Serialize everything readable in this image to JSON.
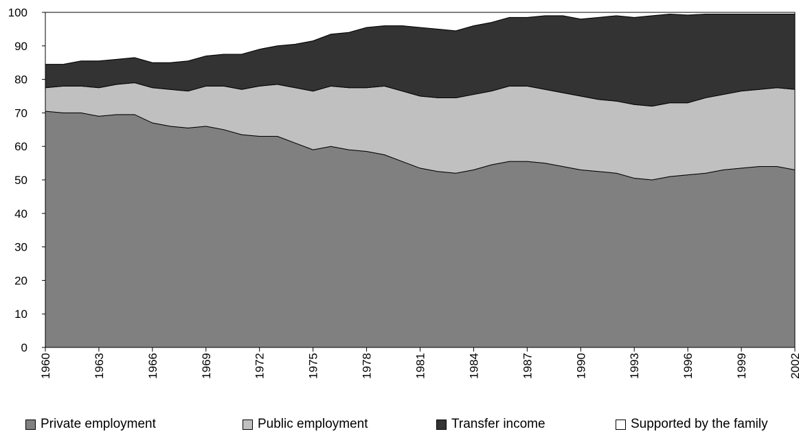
{
  "chart_data": {
    "type": "stacked-area",
    "x": [
      1960,
      1961,
      1962,
      1963,
      1964,
      1965,
      1966,
      1967,
      1968,
      1969,
      1970,
      1971,
      1972,
      1973,
      1974,
      1975,
      1976,
      1977,
      1978,
      1979,
      1980,
      1981,
      1982,
      1983,
      1984,
      1985,
      1986,
      1987,
      1988,
      1989,
      1990,
      1991,
      1992,
      1993,
      1994,
      1995,
      1996,
      1997,
      1998,
      1999,
      2000,
      2001,
      2002
    ],
    "xlim": [
      1960,
      2002
    ],
    "xticks": [
      1960,
      1963,
      1966,
      1969,
      1972,
      1975,
      1978,
      1981,
      1984,
      1987,
      1990,
      1993,
      1996,
      1999,
      2002
    ],
    "ylim": [
      0,
      100
    ],
    "yticks": [
      0,
      10,
      20,
      30,
      40,
      50,
      60,
      70,
      80,
      90,
      100
    ],
    "series": [
      {
        "name": "Private employment",
        "color": "#808080",
        "values": [
          70.5,
          70,
          70,
          69,
          69.5,
          69.5,
          67,
          66,
          65.5,
          66,
          65,
          63.5,
          63,
          63,
          61,
          59,
          60,
          59,
          58.5,
          57.5,
          55.5,
          53.5,
          52.5,
          52,
          53,
          54.5,
          55.5,
          55.5,
          55,
          54,
          53,
          52.5,
          52,
          50.5,
          50,
          51,
          51.5,
          52,
          53,
          53.5,
          54,
          54,
          53
        ]
      },
      {
        "name": "Public employment",
        "color": "#c0c0c0",
        "values": [
          7,
          8,
          8,
          8.5,
          9,
          9.5,
          10.5,
          11,
          11,
          12,
          13,
          13.5,
          15,
          15.5,
          16.5,
          17.5,
          18,
          18.5,
          19,
          20.5,
          21,
          21.5,
          22,
          22.5,
          22.5,
          22,
          22.5,
          22.5,
          22,
          22,
          22,
          21.5,
          21.5,
          22,
          22,
          22,
          21.5,
          22.5,
          22.5,
          23,
          23,
          23.5,
          24
        ]
      },
      {
        "name": "Transfer income",
        "color": "#333333",
        "values": [
          7,
          6.5,
          7.5,
          8,
          7.5,
          7.5,
          7.5,
          8,
          9,
          9,
          9.5,
          10.5,
          11,
          11.5,
          13,
          15,
          15.5,
          16.5,
          18,
          18,
          19.5,
          20.5,
          20.5,
          20,
          20.5,
          20.5,
          20.5,
          20.5,
          22,
          23,
          23,
          24.5,
          25.5,
          26,
          27,
          26.5,
          26.2,
          25,
          24,
          23,
          22.5,
          22,
          22.5
        ]
      },
      {
        "name": "Supported by the family",
        "color": "#ffffff",
        "values": [
          15.5,
          15.5,
          14.5,
          14.5,
          14,
          13.5,
          15,
          15,
          14.5,
          13,
          12.5,
          12.5,
          11,
          10,
          9.5,
          8.5,
          6.5,
          6,
          4.5,
          4,
          4,
          4.5,
          5,
          5.5,
          4,
          3,
          1.5,
          1.5,
          1,
          1,
          2,
          1.5,
          1,
          1.5,
          1,
          0.5,
          0.8,
          0.5,
          0.5,
          0.5,
          0.5,
          0.5,
          0.5
        ]
      }
    ]
  }
}
